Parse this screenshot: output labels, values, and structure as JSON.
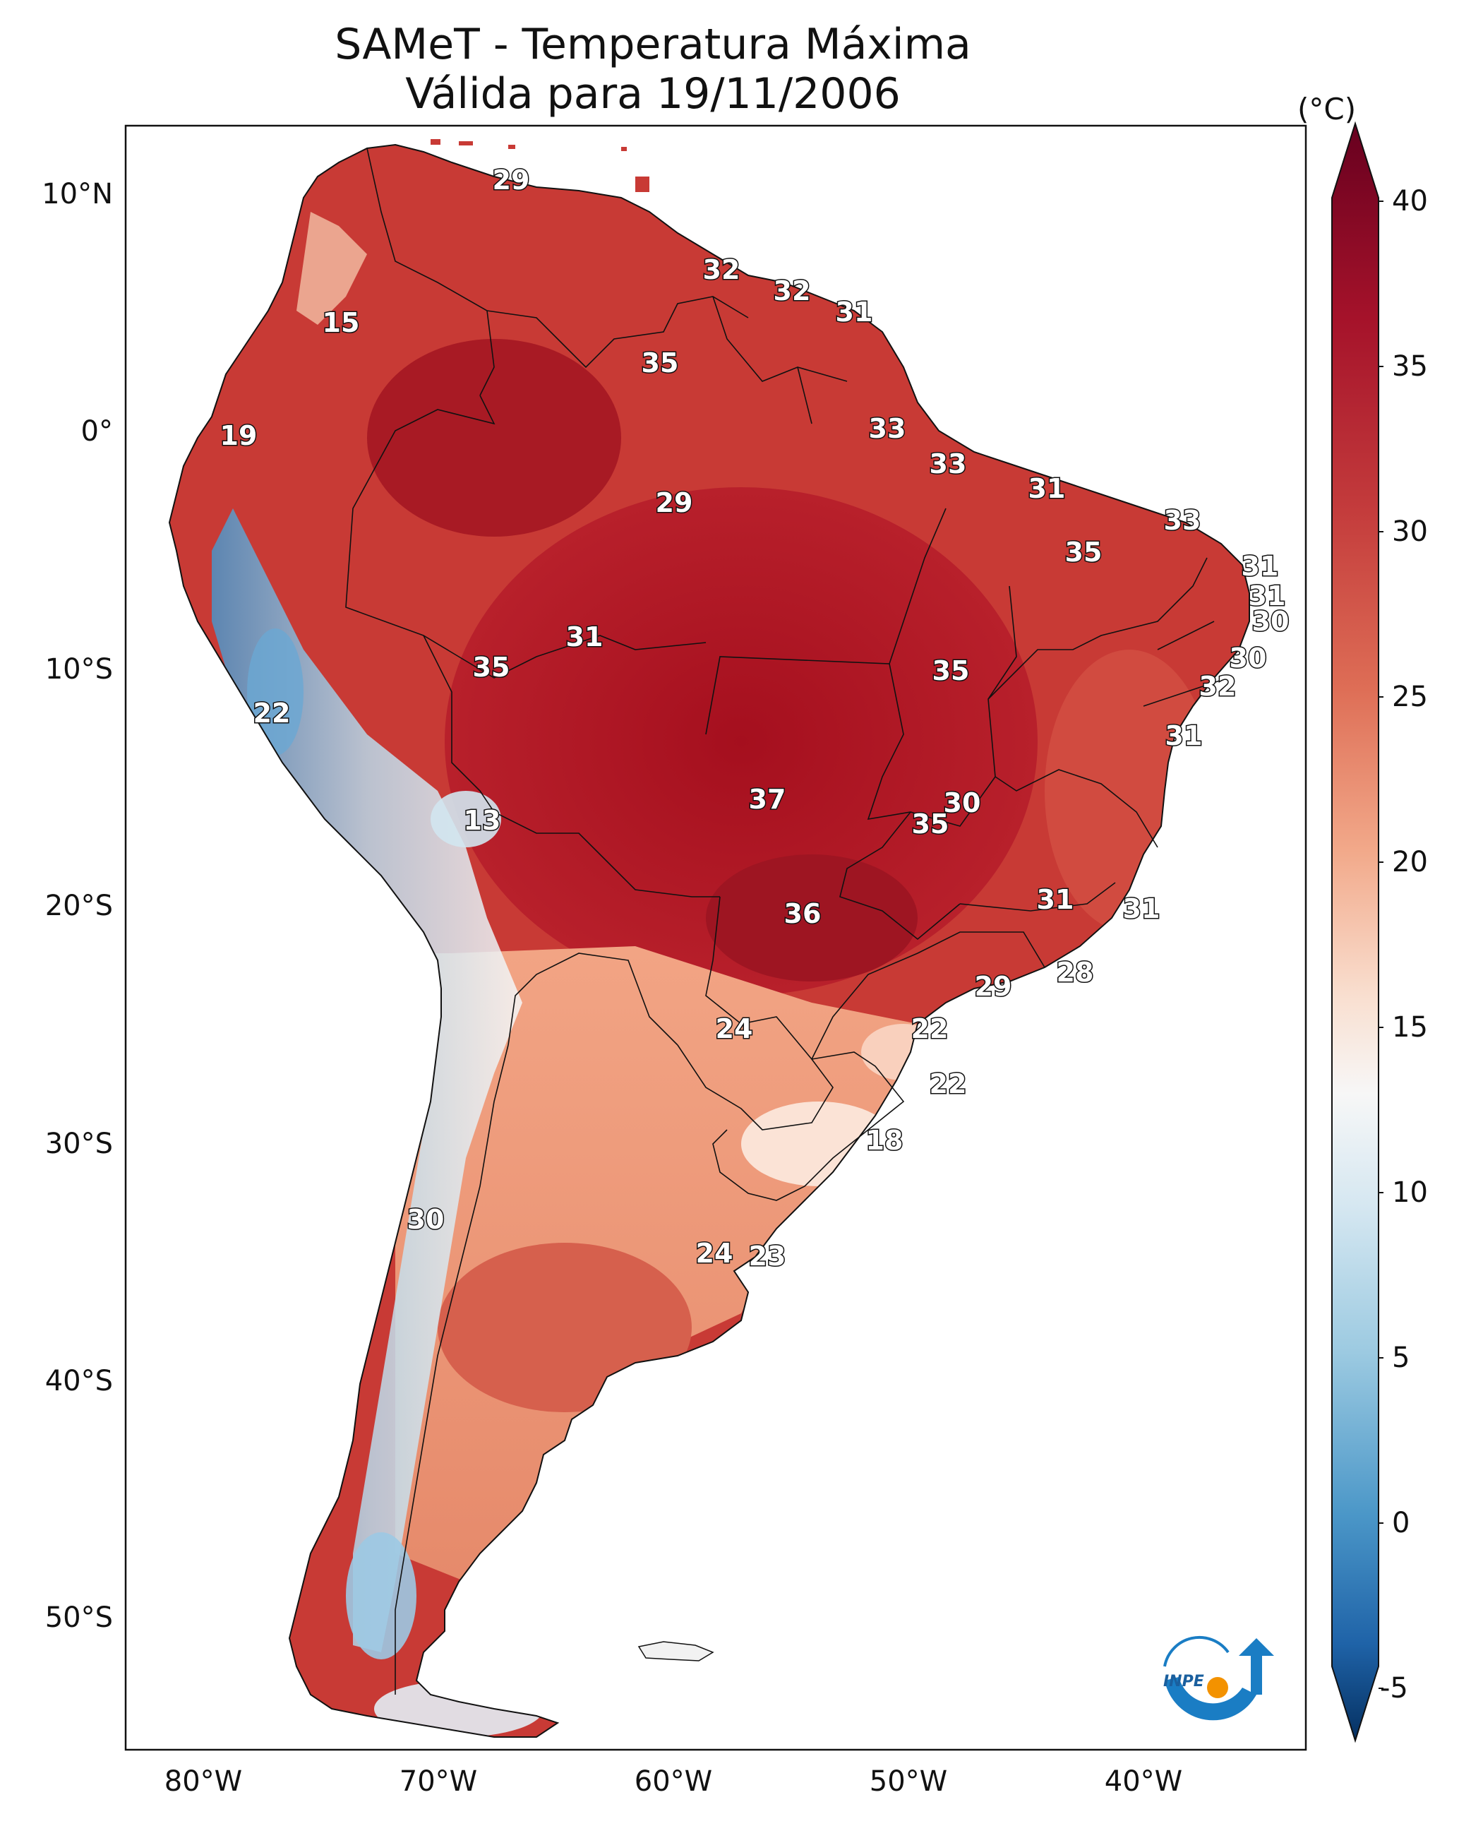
{
  "title": {
    "line1": "SAMeT - Temperatura Máxima",
    "line2": "Válida para 19/11/2006"
  },
  "colorbar": {
    "unit": "(°C)",
    "ticks": [
      "40",
      "35",
      "30",
      "25",
      "20",
      "15",
      "10",
      "5",
      "0",
      "-5"
    ],
    "min": -5,
    "max": 40
  },
  "axes": {
    "lat_labels": [
      "10°N",
      "0°",
      "10°S",
      "20°S",
      "30°S",
      "40°S",
      "50°S"
    ],
    "lon_labels": [
      "80°W",
      "70°W",
      "60°W",
      "50°W",
      "40°W"
    ]
  },
  "station_labels": [
    {
      "id": "l1",
      "text": "29"
    },
    {
      "id": "l2",
      "text": "32"
    },
    {
      "id": "l3",
      "text": "32"
    },
    {
      "id": "l4",
      "text": "31"
    },
    {
      "id": "l5",
      "text": "15"
    },
    {
      "id": "l6",
      "text": "35"
    },
    {
      "id": "l7",
      "text": "19"
    },
    {
      "id": "l8",
      "text": "33"
    },
    {
      "id": "l9",
      "text": "33"
    },
    {
      "id": "l10",
      "text": "29"
    },
    {
      "id": "l11",
      "text": "31"
    },
    {
      "id": "l12",
      "text": "33"
    },
    {
      "id": "l13",
      "text": "35"
    },
    {
      "id": "l14",
      "text": "31"
    },
    {
      "id": "l15",
      "text": "31"
    },
    {
      "id": "l16",
      "text": "30"
    },
    {
      "id": "l17",
      "text": "31"
    },
    {
      "id": "l18",
      "text": "35"
    },
    {
      "id": "l19",
      "text": "35"
    },
    {
      "id": "l20",
      "text": "30"
    },
    {
      "id": "l21",
      "text": "32"
    },
    {
      "id": "l22",
      "text": "22"
    },
    {
      "id": "l23",
      "text": "31"
    },
    {
      "id": "l24",
      "text": "13"
    },
    {
      "id": "l25",
      "text": "37"
    },
    {
      "id": "l26",
      "text": "30"
    },
    {
      "id": "l27",
      "text": "35"
    },
    {
      "id": "l28",
      "text": "36"
    },
    {
      "id": "l29",
      "text": "31"
    },
    {
      "id": "l30",
      "text": "31"
    },
    {
      "id": "l31",
      "text": "28"
    },
    {
      "id": "l32",
      "text": "29"
    },
    {
      "id": "l33",
      "text": "24"
    },
    {
      "id": "l34",
      "text": "22"
    },
    {
      "id": "l35",
      "text": "22"
    },
    {
      "id": "l36",
      "text": "18"
    },
    {
      "id": "l37",
      "text": "30"
    },
    {
      "id": "l38",
      "text": "24"
    },
    {
      "id": "l39",
      "text": "23"
    }
  ],
  "logo": {
    "text": "INPE"
  },
  "colors": {
    "hot": "#b2182b",
    "warm": "#d6604d",
    "mild": "#f4a582",
    "cool": "#f7f7f7",
    "cold": "#92c5de",
    "coldest": "#2166ac"
  }
}
